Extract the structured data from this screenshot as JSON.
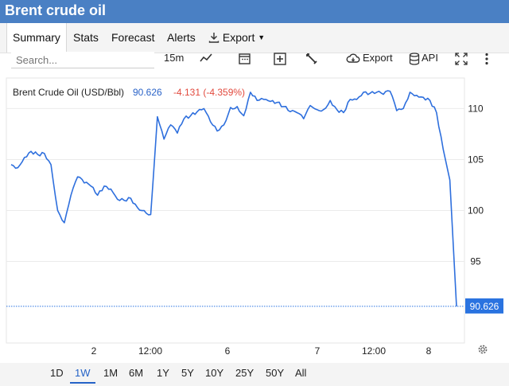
{
  "window": {
    "title": "Brent crude oil"
  },
  "tabs": [
    {
      "label": "Summary",
      "active": true
    },
    {
      "label": "Stats"
    },
    {
      "label": "Forecast"
    },
    {
      "label": "Alerts"
    },
    {
      "label": "Export"
    }
  ],
  "toolbar": {
    "search_placeholder": "Search...",
    "interval": "15m",
    "export_label": "Export",
    "api_label": "API"
  },
  "chart_data": {
    "type": "line",
    "title": "Brent Crude Oil (USD/Bbl)",
    "last_value": "90.626",
    "change": "-4.131 (-4.359%)",
    "x_ticks": [
      "2",
      "12:00",
      "6",
      "7",
      "12:00",
      "8"
    ],
    "y_ticks": [
      110,
      105,
      100,
      95
    ],
    "ylim": [
      87,
      113
    ],
    "series": [
      {
        "values": [
          104.5,
          104.2,
          105.2,
          105.8,
          105.5,
          105.6,
          104.5,
          100,
          98.8,
          101.5,
          103.3,
          102.7,
          102.4,
          101.5,
          102.4,
          102.1,
          101.1,
          101.0,
          101.2,
          100.3,
          100.0,
          99.6,
          109.2,
          107.0,
          108.4,
          107.6,
          109.0,
          109.3,
          109.7,
          110,
          108.7,
          107.8,
          108.4,
          110.1,
          110.2,
          109.3,
          111.6,
          110.8,
          110.9,
          110.7,
          110.6,
          110.2,
          109.7,
          109.6,
          109.0,
          110.3,
          109.9,
          109.9,
          110.8,
          109.9,
          109.6,
          110.9,
          110.9,
          111.6,
          111.5,
          111.6,
          111.4,
          111.7,
          109.8,
          110.0,
          111.6,
          111.3,
          111.1,
          110.8,
          109.6,
          106,
          103,
          90.6
        ]
      }
    ],
    "colors": {
      "line": "#2e6fdd",
      "label_bg": "#2a73e0",
      "change": "#e24a3e",
      "value": "#2a63c8"
    }
  },
  "periods": [
    {
      "label": "1D"
    },
    {
      "label": "1W",
      "active": true
    },
    {
      "label": "1M"
    },
    {
      "label": "6M"
    },
    {
      "label": "1Y"
    },
    {
      "label": "5Y"
    },
    {
      "label": "10Y"
    },
    {
      "label": "25Y"
    },
    {
      "label": "50Y"
    },
    {
      "label": "All"
    }
  ]
}
